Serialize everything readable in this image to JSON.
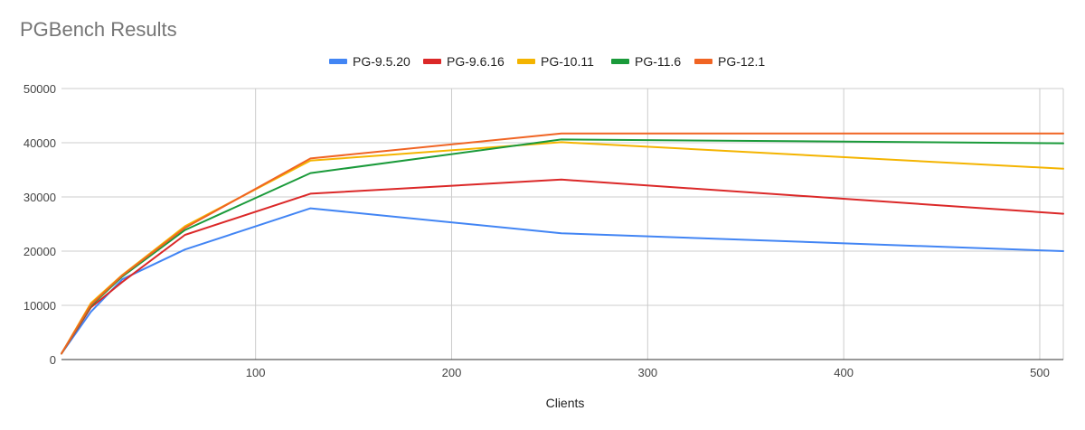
{
  "chart_data": {
    "type": "line",
    "title": "PGBench Results",
    "xlabel": "Clients",
    "ylabel": "",
    "xlim": [
      1,
      512
    ],
    "ylim": [
      0,
      50000
    ],
    "x_ticks": [
      100,
      200,
      300,
      400,
      500
    ],
    "y_ticks": [
      0,
      10000,
      20000,
      30000,
      40000,
      50000
    ],
    "grid": true,
    "legend_position": "top",
    "x": [
      1,
      16,
      32,
      64,
      128,
      256,
      512
    ],
    "series": [
      {
        "name": "PG-9.5.20",
        "color": "#4285f4",
        "values": [
          1100,
          8800,
          14800,
          20300,
          27900,
          23300,
          20000
        ]
      },
      {
        "name": "PG-9.6.16",
        "color": "#db2828",
        "values": [
          1100,
          9600,
          14300,
          23000,
          30600,
          33200,
          26900
        ]
      },
      {
        "name": "PG-10.11",
        "color": "#f4b400",
        "values": [
          1100,
          10400,
          15600,
          24600,
          36700,
          40100,
          35200
        ]
      },
      {
        "name": "PG-11.6",
        "color": "#1a9a3a",
        "values": [
          1100,
          9900,
          15300,
          23900,
          34400,
          40600,
          39900
        ]
      },
      {
        "name": "PG-12.1",
        "color": "#f06423",
        "values": [
          1100,
          10100,
          15500,
          24300,
          37100,
          41700,
          41700
        ]
      }
    ]
  }
}
